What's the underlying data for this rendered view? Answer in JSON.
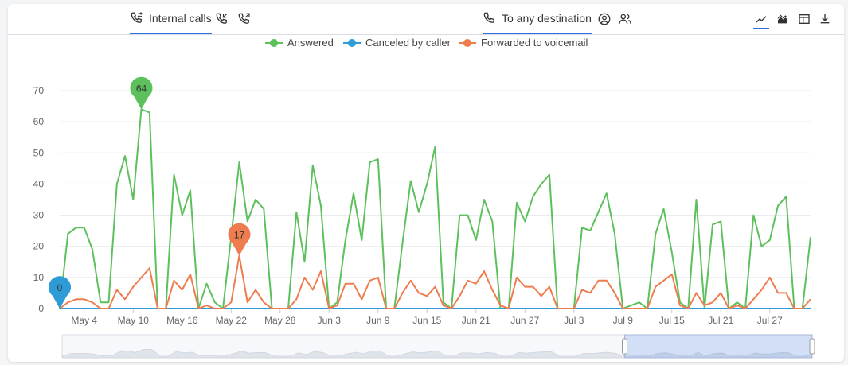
{
  "tabs": {
    "internal_calls": {
      "label": "Internal calls",
      "icon": "phone-transfer-icon"
    },
    "to_any_destination": {
      "label": "To any destination",
      "icon": "phone-icon"
    }
  },
  "toolbar": {
    "icons": [
      "line-chart-icon",
      "area-chart-icon",
      "table-view-icon",
      "download-icon"
    ]
  },
  "colors": {
    "answered": "#5cc15c",
    "canceled": "#2f9bd6",
    "voicemail": "#ee7c4e",
    "accent": "#2f6fe4"
  },
  "chart_data": {
    "type": "line",
    "legend_position": "top",
    "grid": true,
    "ylim": [
      0,
      70
    ],
    "yticks": [
      0,
      10,
      20,
      30,
      40,
      50,
      60,
      70
    ],
    "x_tick_labels": [
      "May 4",
      "May 10",
      "May 16",
      "May 22",
      "May 28",
      "Jun 3",
      "Jun 9",
      "Jun 15",
      "Jun 21",
      "Jun 27",
      "Jul 3",
      "Jul 9",
      "Jul 15",
      "Jul 21",
      "Jul 27"
    ],
    "x_tick_days": [
      3,
      9,
      15,
      21,
      27,
      33,
      39,
      45,
      51,
      57,
      63,
      69,
      75,
      81,
      87
    ],
    "series": [
      {
        "name": "Answered",
        "values": [
          0,
          24,
          26,
          26,
          19,
          2,
          2,
          40,
          49,
          35,
          64,
          63,
          0,
          0,
          43,
          30,
          38,
          0,
          8,
          2,
          0,
          23,
          47,
          28,
          35,
          32,
          0,
          0,
          0,
          31,
          15,
          46,
          33,
          0,
          2,
          22,
          37,
          22,
          47,
          48,
          0,
          0,
          21,
          41,
          31,
          40,
          52,
          2,
          0,
          30,
          30,
          22,
          35,
          28,
          0,
          0,
          34,
          28,
          36,
          40,
          43,
          0,
          0,
          0,
          26,
          25,
          31,
          37,
          24,
          0,
          1,
          2,
          0,
          24,
          32,
          18,
          2,
          0,
          35,
          0,
          27,
          28,
          0,
          2,
          0,
          30,
          20,
          22,
          33,
          36,
          0,
          0,
          23
        ]
      },
      {
        "name": "Canceled by caller",
        "values": [
          0,
          0,
          0,
          0,
          0,
          0,
          0,
          0,
          0,
          0,
          0,
          0,
          0,
          0,
          0,
          0,
          0,
          0,
          0,
          0,
          0,
          0,
          0,
          0,
          0,
          0,
          0,
          0,
          0,
          0,
          0,
          0,
          0,
          0,
          0,
          0,
          0,
          0,
          0,
          0,
          0,
          0,
          0,
          0,
          0,
          0,
          0,
          0,
          0,
          0,
          0,
          0,
          0,
          0,
          0,
          0,
          0,
          0,
          0,
          0,
          0,
          0,
          0,
          0,
          0,
          0,
          0,
          0,
          0,
          0,
          0,
          0,
          0,
          0,
          0,
          0,
          0,
          0,
          0,
          0,
          0,
          0,
          0,
          0,
          0,
          0,
          0,
          0,
          0,
          0,
          0,
          0,
          0
        ]
      },
      {
        "name": "Forwarded to voicemail",
        "values": [
          0,
          2,
          3,
          3,
          2,
          0,
          0,
          6,
          3,
          7,
          10,
          13,
          0,
          0,
          9,
          6,
          11,
          0,
          1,
          0,
          0,
          2,
          17,
          2,
          6,
          2,
          0,
          0,
          0,
          3,
          10,
          6,
          12,
          0,
          1,
          8,
          8,
          3,
          9,
          10,
          0,
          0,
          5,
          9,
          5,
          4,
          7,
          1,
          0,
          4,
          9,
          8,
          12,
          6,
          1,
          0,
          10,
          7,
          7,
          4,
          7,
          0,
          0,
          0,
          6,
          5,
          9,
          9,
          5,
          0,
          0,
          0,
          0,
          7,
          9,
          11,
          1,
          0,
          5,
          1,
          2,
          5,
          0,
          1,
          0,
          3,
          6,
          10,
          5,
          5,
          0,
          0,
          3
        ]
      }
    ],
    "annotations": [
      {
        "series": "Answered",
        "label": "64",
        "day": 10,
        "value": 64
      },
      {
        "series": "Forwarded to voicemail",
        "label": "17",
        "day": 22,
        "value": 17
      },
      {
        "series": "Canceled by caller",
        "label": "0",
        "day": 0,
        "value": 0
      }
    ],
    "navigator_selection": [
      0.75,
      1.0
    ]
  }
}
